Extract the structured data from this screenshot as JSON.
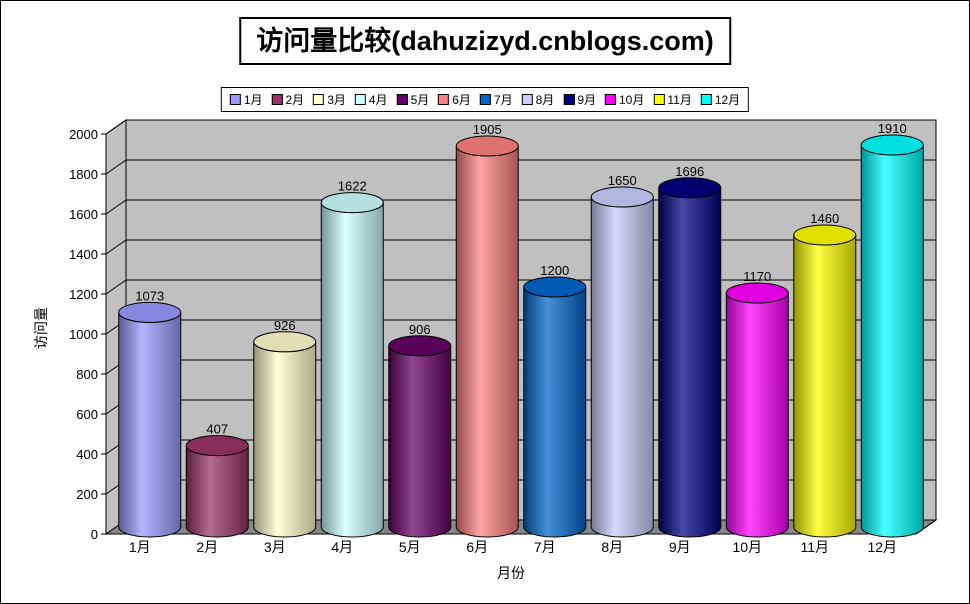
{
  "chart": {
    "title": "访问量比较(dahuzizyd.cnblogs.com)"
  },
  "chart_data": {
    "type": "bar",
    "subtype": "3d-cylinder",
    "title": "访问量比较(dahuzizyd.cnblogs.com)",
    "categories": [
      "1月",
      "2月",
      "3月",
      "4月",
      "5月",
      "6月",
      "7月",
      "8月",
      "9月",
      "10月",
      "11月",
      "12月"
    ],
    "values": [
      1073,
      407,
      926,
      1622,
      906,
      1905,
      1200,
      1650,
      1696,
      1170,
      1460,
      1910
    ],
    "colors": [
      "#9999FF",
      "#993366",
      "#FFFFCC",
      "#CCFFFF",
      "#660066",
      "#FF8080",
      "#0066CC",
      "#CCCCFF",
      "#000080",
      "#FF00FF",
      "#FFFF00",
      "#00FFFF"
    ],
    "xlabel": "月份",
    "ylabel": "访问量",
    "ylim": [
      0,
      2000
    ],
    "ytick_step": 200,
    "legend_position": "top",
    "grid": true,
    "wall_color": "#C0C0C0",
    "floor_color": "#878787",
    "axis_color": "#000000",
    "label_color": "#000000"
  }
}
